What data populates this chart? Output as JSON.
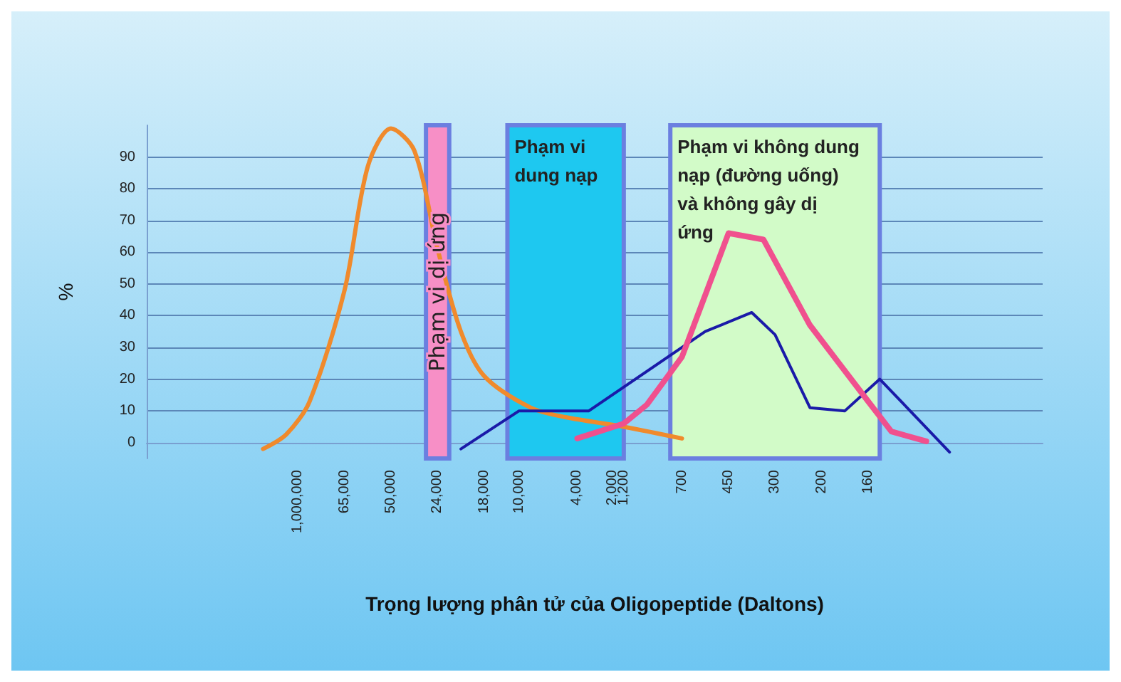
{
  "chart_data": {
    "type": "line",
    "xlabel": "Trọng lượng phân tử của Oligopeptide (Daltons)",
    "ylabel": "%",
    "categories": [
      null,
      null,
      null,
      null,
      null,
      null,
      null,
      null,
      null,
      null,
      null,
      null,
      null,
      "1,000,000",
      null,
      null,
      null,
      "65,000",
      null,
      null,
      null,
      "50,000",
      null,
      null,
      null,
      "24,000",
      null,
      null,
      null,
      "18,000",
      null,
      null,
      "10,000",
      null,
      null,
      null,
      null,
      "4,000",
      null,
      null,
      "2,000",
      "1,200",
      null,
      null,
      null,
      null,
      "700",
      null,
      null,
      null,
      "450",
      null,
      null,
      null,
      "300",
      null,
      null,
      null,
      "200",
      null,
      null,
      null,
      "160",
      null,
      null,
      null,
      null,
      null,
      null,
      null,
      null,
      null,
      null,
      null,
      null,
      null,
      null,
      null
    ],
    "ylim": [
      -5,
      100
    ],
    "yticks": [
      0,
      10,
      20,
      30,
      40,
      50,
      60,
      70,
      80,
      90
    ],
    "grid": "y",
    "marker": "none",
    "line_style": "solid",
    "series": [
      {
        "color": "#f08a2c",
        "values": [
          null,
          null,
          null,
          null,
          null,
          null,
          null,
          null,
          null,
          null,
          -2,
          null,
          2.6,
          null,
          13,
          null,
          null,
          48,
          null,
          87,
          null,
          99,
          null,
          92,
          null,
          61,
          null,
          35,
          null,
          21,
          null,
          null,
          null,
          11,
          null,
          null,
          8,
          null,
          null,
          null,
          null,
          5,
          null,
          null,
          null,
          null,
          1.3,
          null,
          null,
          null,
          null,
          null,
          null,
          null,
          null,
          null,
          null,
          null,
          null,
          null,
          null,
          null,
          null,
          null,
          null,
          null,
          null,
          null,
          null,
          null,
          null,
          null,
          null,
          null,
          null,
          null,
          null,
          null
        ]
      },
      {
        "color": "#1a1aa8",
        "values": [
          null,
          null,
          null,
          null,
          null,
          null,
          null,
          null,
          null,
          null,
          null,
          null,
          null,
          null,
          null,
          null,
          null,
          null,
          null,
          null,
          null,
          null,
          null,
          null,
          null,
          null,
          null,
          -2,
          null,
          null,
          null,
          null,
          10,
          null,
          null,
          null,
          null,
          null,
          10,
          null,
          null,
          null,
          null,
          null,
          null,
          null,
          null,
          null,
          35,
          null,
          null,
          null,
          41,
          null,
          34,
          null,
          null,
          11,
          null,
          null,
          10,
          null,
          null,
          20,
          null,
          null,
          null,
          null,
          null,
          -3,
          null,
          null,
          null,
          null,
          null,
          null,
          null,
          null
        ]
      },
      {
        "color": "#f0508e",
        "values": [
          null,
          null,
          null,
          null,
          null,
          null,
          null,
          null,
          null,
          null,
          null,
          null,
          null,
          null,
          null,
          null,
          null,
          null,
          null,
          null,
          null,
          null,
          null,
          null,
          null,
          null,
          null,
          null,
          null,
          null,
          null,
          null,
          null,
          null,
          null,
          null,
          null,
          1.3,
          null,
          null,
          null,
          6,
          null,
          12,
          null,
          null,
          27,
          null,
          null,
          null,
          66,
          null,
          null,
          64,
          null,
          null,
          null,
          37,
          null,
          null,
          null,
          null,
          13,
          null,
          3.5,
          null,
          null,
          0.4,
          null,
          null,
          null,
          null,
          null,
          null,
          null,
          null,
          null,
          null
        ]
      }
    ],
    "bands": [
      {
        "axis": "x",
        "from": "24,000",
        "to": "24,000",
        "label": "Phạm vi dị ứng",
        "color": "#f78fc6"
      },
      {
        "axis": "x",
        "from": "10,000",
        "to": "2,000",
        "label": "Phạm vi dung nạp",
        "color": "#1ec8f0"
      },
      {
        "axis": "x",
        "from": "700",
        "to": "160",
        "label": "Phạm vi không dung nạp (đường uống) và không gây dị ứng",
        "color": "#d2fbc8"
      }
    ]
  }
}
